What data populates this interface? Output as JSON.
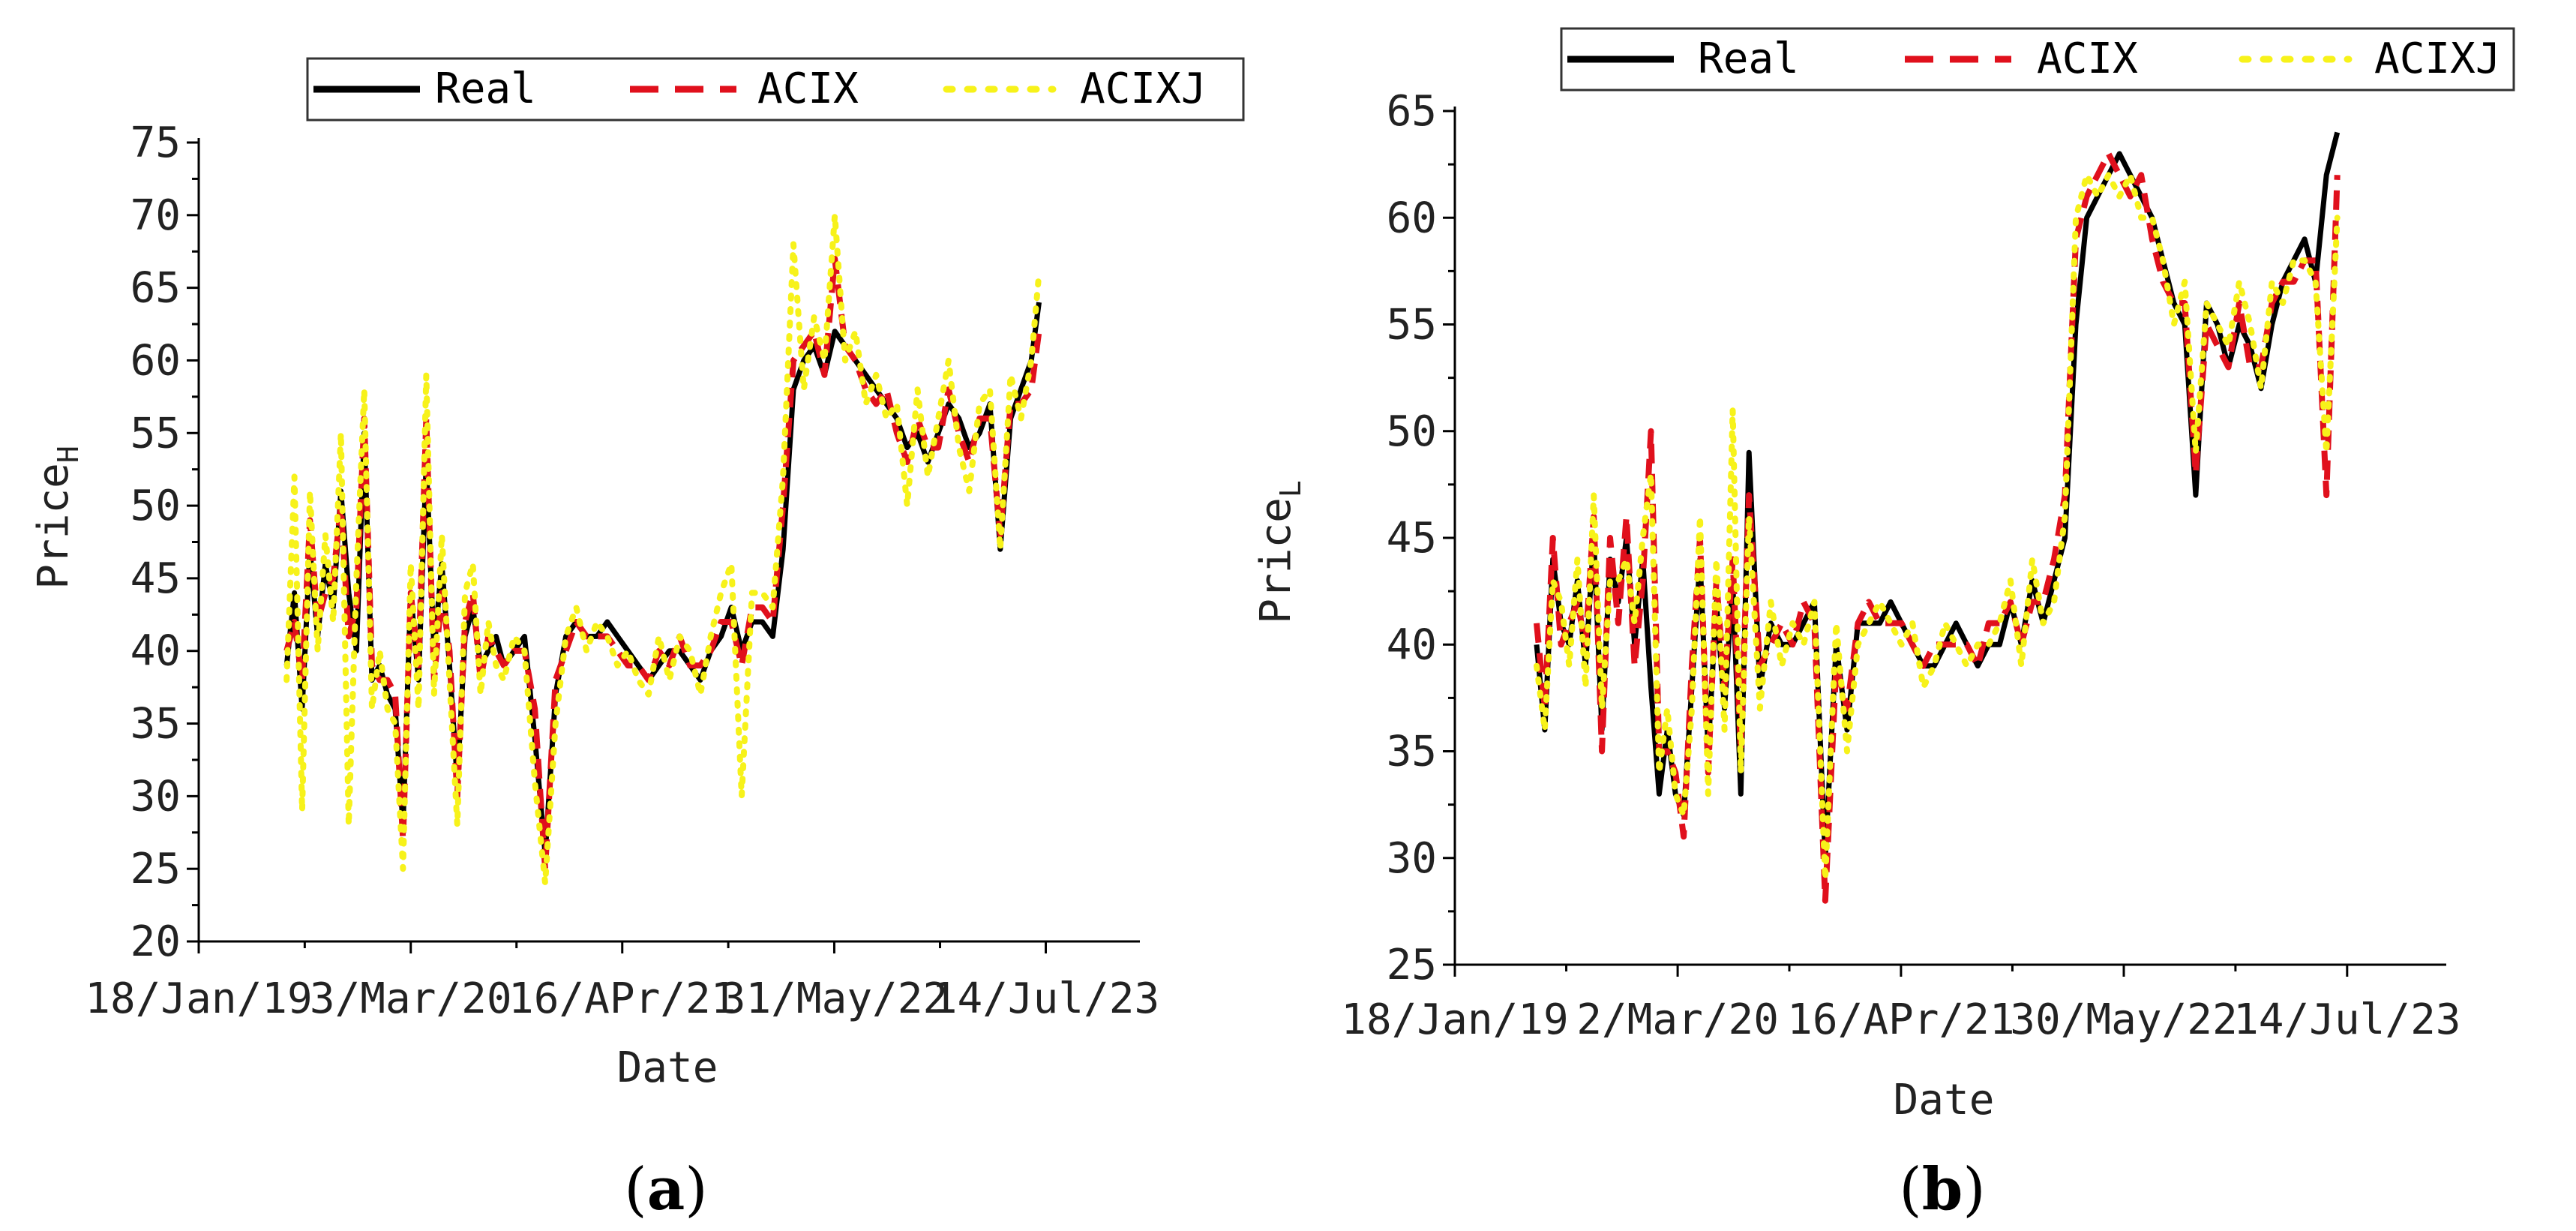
{
  "colors": {
    "real": "#000000",
    "acix": "#e0101c",
    "acixj": "#f7f21a"
  },
  "chart_data": [
    {
      "type": "line",
      "panel_label": "a",
      "xlabel": "Date",
      "ylabel_main": "Price",
      "ylabel_sub": "H",
      "ylim": [
        20,
        75
      ],
      "yticks": [
        "20",
        "25",
        "30",
        "35",
        "40",
        "45",
        "50",
        "55",
        "60",
        "65",
        "70",
        "75"
      ],
      "xlim": [
        0,
        1820
      ],
      "xticks": [
        {
          "label": "18/Jan/19",
          "x": 0
        },
        {
          "label": "3/Mar/20",
          "x": 410
        },
        {
          "label": "16/APr/21",
          "x": 819
        },
        {
          "label": "31/May/22",
          "x": 1229
        },
        {
          "label": "14/Jul/23",
          "x": 1638
        }
      ],
      "legend": [
        "Real",
        "ACIX",
        "ACIXJ"
      ],
      "series": [
        {
          "name": "Real",
          "x": [
            170,
            185,
            200,
            215,
            230,
            245,
            260,
            275,
            290,
            305,
            320,
            335,
            350,
            365,
            380,
            395,
            410,
            425,
            440,
            455,
            470,
            485,
            500,
            515,
            530,
            545,
            560,
            575,
            590,
            610,
            630,
            650,
            670,
            690,
            710,
            730,
            750,
            770,
            790,
            810,
            830,
            850,
            870,
            890,
            910,
            930,
            950,
            970,
            990,
            1010,
            1030,
            1050,
            1070,
            1090,
            1110,
            1130,
            1150,
            1170,
            1190,
            1210,
            1230,
            1250,
            1270,
            1290,
            1310,
            1330,
            1350,
            1370,
            1390,
            1410,
            1430,
            1450,
            1470,
            1490,
            1510,
            1530,
            1550,
            1570,
            1590,
            1610,
            1625
          ],
          "values": [
            39,
            44,
            36,
            47,
            41,
            46,
            43,
            51,
            44,
            40,
            55,
            38,
            39,
            37,
            36,
            28,
            44,
            38,
            53,
            40,
            46,
            39,
            31,
            41,
            43,
            39,
            40,
            41,
            39,
            40,
            41,
            34,
            26,
            37,
            41,
            42,
            41,
            41,
            42,
            41,
            40,
            39,
            38,
            39,
            40,
            40,
            39,
            38,
            40,
            41,
            43,
            40,
            42,
            42,
            41,
            47,
            58,
            60,
            61,
            59,
            62,
            61,
            60,
            59,
            58,
            57,
            56,
            54,
            55,
            53,
            55,
            57,
            56,
            54,
            55,
            57,
            47,
            56,
            58,
            60,
            64
          ]
        },
        {
          "name": "ACIX",
          "x": [
            170,
            185,
            200,
            215,
            230,
            245,
            260,
            275,
            290,
            305,
            320,
            335,
            350,
            365,
            380,
            395,
            410,
            425,
            440,
            455,
            470,
            485,
            500,
            515,
            530,
            545,
            560,
            575,
            590,
            610,
            630,
            650,
            670,
            690,
            710,
            730,
            750,
            770,
            790,
            810,
            830,
            850,
            870,
            890,
            910,
            930,
            950,
            970,
            990,
            1010,
            1030,
            1050,
            1070,
            1090,
            1110,
            1130,
            1150,
            1170,
            1190,
            1210,
            1230,
            1250,
            1270,
            1290,
            1310,
            1330,
            1350,
            1370,
            1390,
            1410,
            1430,
            1450,
            1470,
            1490,
            1510,
            1530,
            1550,
            1570,
            1590,
            1610,
            1625
          ],
          "values": [
            40,
            42,
            38,
            49,
            42,
            44,
            45,
            50,
            41,
            43,
            56,
            39,
            38,
            38,
            37,
            27,
            44,
            39,
            56,
            38,
            44,
            40,
            30,
            42,
            44,
            38,
            41,
            40,
            39,
            40,
            40,
            36,
            25,
            38,
            40,
            42,
            41,
            41,
            41,
            40,
            39,
            39,
            38,
            40,
            39,
            41,
            39,
            39,
            40,
            42,
            42,
            39,
            43,
            43,
            42,
            50,
            60,
            61,
            62,
            59,
            67,
            61,
            60,
            58,
            57,
            58,
            55,
            53,
            56,
            54,
            54,
            58,
            55,
            53,
            56,
            56,
            48,
            57,
            57,
            58,
            62
          ]
        },
        {
          "name": "ACIXJ",
          "x": [
            170,
            185,
            200,
            215,
            230,
            245,
            260,
            275,
            290,
            305,
            320,
            335,
            350,
            365,
            380,
            395,
            410,
            425,
            440,
            455,
            470,
            485,
            500,
            515,
            530,
            545,
            560,
            575,
            590,
            610,
            630,
            650,
            670,
            690,
            710,
            730,
            750,
            770,
            790,
            810,
            830,
            850,
            870,
            890,
            910,
            930,
            950,
            970,
            990,
            1010,
            1030,
            1050,
            1070,
            1090,
            1110,
            1130,
            1150,
            1170,
            1190,
            1210,
            1230,
            1250,
            1270,
            1290,
            1310,
            1330,
            1350,
            1370,
            1390,
            1410,
            1430,
            1450,
            1470,
            1490,
            1510,
            1530,
            1550,
            1570,
            1590,
            1610,
            1625
          ],
          "values": [
            38,
            52,
            29,
            51,
            40,
            48,
            42,
            55,
            28,
            45,
            58,
            36,
            40,
            36,
            35,
            25,
            46,
            36,
            59,
            37,
            48,
            38,
            28,
            44,
            46,
            37,
            42,
            39,
            38,
            41,
            40,
            31,
            24,
            35,
            41,
            43,
            40,
            42,
            41,
            39,
            40,
            38,
            37,
            41,
            38,
            41,
            40,
            37,
            41,
            44,
            46,
            30,
            44,
            44,
            43,
            52,
            68,
            58,
            63,
            60,
            70,
            60,
            62,
            57,
            59,
            56,
            57,
            50,
            58,
            52,
            56,
            60,
            54,
            51,
            57,
            58,
            47,
            59,
            56,
            60,
            66
          ]
        }
      ]
    },
    {
      "type": "line",
      "panel_label": "b",
      "xlabel": "Date",
      "ylabel_main": "Price",
      "ylabel_sub": "L",
      "ylim": [
        25,
        65
      ],
      "yticks": [
        "25",
        "30",
        "35",
        "40",
        "45",
        "50",
        "55",
        "60",
        "65"
      ],
      "xlim": [
        0,
        1820
      ],
      "xticks": [
        {
          "label": "18/Jan/19",
          "x": 0
        },
        {
          "label": "2/Mar/20",
          "x": 409
        },
        {
          "label": "16/APr/21",
          "x": 819
        },
        {
          "label": "30/May/22",
          "x": 1228
        },
        {
          "label": "14/Jul/23",
          "x": 1638
        }
      ],
      "legend": [
        "Real",
        "ACIX",
        "ACIXJ"
      ],
      "series": [
        {
          "name": "Real",
          "x": [
            150,
            165,
            180,
            195,
            210,
            225,
            240,
            255,
            270,
            285,
            300,
            315,
            330,
            345,
            360,
            375,
            390,
            405,
            420,
            435,
            450,
            465,
            480,
            495,
            510,
            525,
            540,
            560,
            580,
            600,
            620,
            640,
            660,
            680,
            700,
            720,
            740,
            760,
            780,
            800,
            820,
            840,
            860,
            880,
            900,
            920,
            940,
            960,
            980,
            1000,
            1020,
            1040,
            1060,
            1080,
            1100,
            1120,
            1140,
            1160,
            1180,
            1200,
            1220,
            1240,
            1260,
            1280,
            1300,
            1320,
            1340,
            1360,
            1380,
            1400,
            1420,
            1440,
            1460,
            1480,
            1500,
            1520,
            1540,
            1560,
            1580,
            1600,
            1620
          ],
          "values": [
            40,
            36,
            44,
            41,
            40,
            43,
            39,
            45,
            36,
            44,
            42,
            45,
            40,
            44,
            38,
            33,
            36,
            33,
            32,
            38,
            44,
            35,
            42,
            37,
            43,
            33,
            49,
            38,
            41,
            40,
            40,
            41,
            42,
            30,
            40,
            36,
            41,
            41,
            41,
            42,
            41,
            40,
            39,
            39,
            40,
            41,
            40,
            39,
            40,
            40,
            42,
            40,
            43,
            41,
            43,
            45,
            55,
            60,
            61,
            62,
            63,
            62,
            61,
            60,
            58,
            56,
            55,
            47,
            56,
            55,
            53,
            55,
            54,
            52,
            55,
            57,
            58,
            59,
            57,
            62,
            64
          ]
        },
        {
          "name": "ACIX",
          "x": [
            150,
            165,
            180,
            195,
            210,
            225,
            240,
            255,
            270,
            285,
            300,
            315,
            330,
            345,
            360,
            375,
            390,
            405,
            420,
            435,
            450,
            465,
            480,
            495,
            510,
            525,
            540,
            560,
            580,
            600,
            620,
            640,
            660,
            680,
            700,
            720,
            740,
            760,
            780,
            800,
            820,
            840,
            860,
            880,
            900,
            920,
            940,
            960,
            980,
            1000,
            1020,
            1040,
            1060,
            1080,
            1100,
            1120,
            1140,
            1160,
            1180,
            1200,
            1220,
            1240,
            1260,
            1280,
            1300,
            1320,
            1340,
            1360,
            1380,
            1400,
            1420,
            1440,
            1460,
            1480,
            1500,
            1520,
            1540,
            1560,
            1580,
            1600,
            1620
          ],
          "values": [
            41,
            37,
            45,
            40,
            41,
            42,
            40,
            46,
            35,
            45,
            41,
            46,
            39,
            43,
            50,
            35,
            35,
            34,
            31,
            39,
            45,
            34,
            43,
            38,
            44,
            35,
            47,
            39,
            40,
            41,
            40,
            42,
            41,
            28,
            39,
            37,
            41,
            42,
            41,
            41,
            41,
            40,
            39,
            40,
            40,
            40,
            40,
            39,
            41,
            41,
            42,
            40,
            42,
            42,
            44,
            47,
            59,
            61,
            62,
            63,
            62,
            61,
            62,
            59,
            57,
            56,
            56,
            48,
            55,
            54,
            53,
            56,
            53,
            53,
            56,
            57,
            57,
            58,
            58,
            47,
            62
          ]
        },
        {
          "name": "ACIXJ",
          "x": [
            150,
            165,
            180,
            195,
            210,
            225,
            240,
            255,
            270,
            285,
            300,
            315,
            330,
            345,
            360,
            375,
            390,
            405,
            420,
            435,
            450,
            465,
            480,
            495,
            510,
            525,
            540,
            560,
            580,
            600,
            620,
            640,
            660,
            680,
            700,
            720,
            740,
            760,
            780,
            800,
            820,
            840,
            860,
            880,
            900,
            920,
            940,
            960,
            980,
            1000,
            1020,
            1040,
            1060,
            1080,
            1100,
            1120,
            1140,
            1160,
            1180,
            1200,
            1220,
            1240,
            1260,
            1280,
            1300,
            1320,
            1340,
            1360,
            1380,
            1400,
            1420,
            1440,
            1460,
            1480,
            1500,
            1520,
            1540,
            1560,
            1580,
            1600,
            1620
          ],
          "values": [
            39,
            36,
            43,
            42,
            39,
            44,
            38,
            47,
            37,
            43,
            43,
            44,
            41,
            45,
            48,
            34,
            37,
            33,
            32,
            37,
            46,
            33,
            44,
            36,
            51,
            34,
            46,
            37,
            42,
            39,
            41,
            40,
            42,
            29,
            41,
            35,
            40,
            41,
            42,
            41,
            40,
            41,
            38,
            39,
            41,
            40,
            39,
            40,
            40,
            41,
            43,
            39,
            44,
            41,
            42,
            46,
            60,
            62,
            61,
            62,
            61,
            62,
            60,
            60,
            58,
            55,
            57,
            49,
            56,
            55,
            54,
            57,
            55,
            52,
            57,
            56,
            58,
            58,
            57,
            49,
            60
          ]
        }
      ]
    }
  ]
}
